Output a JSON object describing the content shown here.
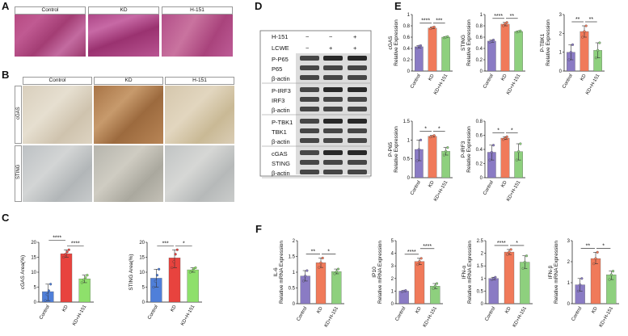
{
  "panels": {
    "A": "A",
    "B": "B",
    "C": "C",
    "D": "D",
    "E": "E",
    "F": "F"
  },
  "groups": [
    "Control",
    "KD",
    "H-151"
  ],
  "panel_b_rows": [
    "cGAS",
    "STING"
  ],
  "western": {
    "treatments": [
      {
        "name": "H-151",
        "signs": [
          "−",
          "−",
          "+"
        ]
      },
      {
        "name": "LCWE",
        "signs": [
          "−",
          "+",
          "+"
        ]
      }
    ],
    "blocks": [
      [
        "P-P65",
        "P65",
        "β-actin"
      ],
      [
        "P-IRF3",
        "IRF3",
        "β-actin"
      ],
      [
        "P-TBK1",
        "TBK1",
        "β-actin"
      ],
      [
        "cGAS",
        "STING",
        "β-actin"
      ]
    ]
  },
  "chart_data": [
    {
      "id": "C1",
      "type": "bar",
      "categories": [
        "Control",
        "KD",
        "KD+H-151"
      ],
      "values": [
        3.5,
        16.2,
        7.8
      ],
      "ylabel": "cGAS Area(%)",
      "ylim": [
        0,
        20
      ],
      "yticks": [
        0,
        5,
        10,
        15,
        20
      ],
      "colors": [
        "#4f7fd9",
        "#e8433e",
        "#8ee06b"
      ],
      "sig": [
        {
          "a": 0,
          "b": 1,
          "t": "****",
          "row": 1
        },
        {
          "a": 1,
          "b": 2,
          "t": "****",
          "row": 0
        }
      ],
      "points": [
        [
          0.5,
          2.5,
          3.8,
          6
        ],
        [
          15,
          16,
          16.8,
          17.5
        ],
        [
          6.5,
          7.5,
          8.2,
          9
        ]
      ]
    },
    {
      "id": "C2",
      "type": "bar",
      "categories": [
        "Control",
        "KD",
        "KD+H-151"
      ],
      "values": [
        8,
        14.8,
        10.8
      ],
      "ylabel": "STING Area(%)",
      "ylim": [
        0,
        20
      ],
      "yticks": [
        0,
        5,
        10,
        15,
        20
      ],
      "colors": [
        "#4f7fd9",
        "#e8433e",
        "#8ee06b"
      ],
      "sig": [
        {
          "a": 0,
          "b": 1,
          "t": "***",
          "row": 0
        },
        {
          "a": 1,
          "b": 2,
          "t": "*",
          "row": 0
        }
      ],
      "points": [
        [
          5,
          7,
          9,
          11
        ],
        [
          11.5,
          13.5,
          16,
          17.5
        ],
        [
          10,
          10.5,
          11.2,
          11.5
        ]
      ]
    },
    {
      "id": "E1",
      "type": "bar",
      "categories": [
        "Control",
        "KD",
        "KD+H-151"
      ],
      "values": [
        0.43,
        0.76,
        0.6
      ],
      "ylabel": "cGAS\nRelative Expression",
      "ylim": [
        0,
        1.0
      ],
      "yticks": [
        0,
        0.2,
        0.4,
        0.6,
        0.8,
        1.0
      ],
      "colors": [
        "#8a7bc4",
        "#f07a5a",
        "#8ed07e"
      ],
      "sig": [
        {
          "a": 0,
          "b": 1,
          "t": "****",
          "row": 0
        },
        {
          "a": 1,
          "b": 2,
          "t": "***",
          "row": 0
        }
      ],
      "points": [
        [
          0.41,
          0.44,
          0.45
        ],
        [
          0.75,
          0.77,
          0.78
        ],
        [
          0.59,
          0.6,
          0.61
        ]
      ]
    },
    {
      "id": "E2",
      "type": "bar",
      "categories": [
        "Control",
        "KD",
        "KD+H-151"
      ],
      "values": [
        0.53,
        0.83,
        0.7
      ],
      "ylabel": "STING\nRelative Expression",
      "ylim": [
        0,
        1.0
      ],
      "yticks": [
        0,
        0.2,
        0.4,
        0.6,
        0.8,
        1.0
      ],
      "colors": [
        "#8a7bc4",
        "#f07a5a",
        "#8ed07e"
      ],
      "sig": [
        {
          "a": 0,
          "b": 1,
          "t": "****",
          "row": 0
        },
        {
          "a": 1,
          "b": 2,
          "t": "**",
          "row": 0
        }
      ],
      "points": [
        [
          0.51,
          0.53,
          0.55
        ],
        [
          0.8,
          0.84,
          0.86
        ],
        [
          0.69,
          0.7,
          0.71
        ]
      ]
    },
    {
      "id": "E3",
      "type": "bar",
      "categories": [
        "Control",
        "KD",
        "KD+H-151"
      ],
      "values": [
        1.0,
        2.1,
        1.1
      ],
      "ylabel": "P-TBK1\nRelative Expression",
      "ylim": [
        0,
        3
      ],
      "yticks": [
        0,
        1,
        2,
        3
      ],
      "colors": [
        "#8a7bc4",
        "#f07a5a",
        "#8ed07e"
      ],
      "sig": [
        {
          "a": 0,
          "b": 1,
          "t": "**",
          "row": 0
        },
        {
          "a": 1,
          "b": 2,
          "t": "**",
          "row": 0
        }
      ],
      "points": [
        [
          0.6,
          1.0,
          1.4
        ],
        [
          1.8,
          2.1,
          2.4
        ],
        [
          0.7,
          1.1,
          1.5
        ]
      ]
    },
    {
      "id": "E4",
      "type": "bar",
      "categories": [
        "Control",
        "KD",
        "KD+H-151"
      ],
      "values": [
        0.75,
        1.1,
        0.7
      ],
      "ylabel": "P-P65\nRelative Expression",
      "ylim": [
        0,
        1.5
      ],
      "yticks": [
        0,
        0.5,
        1.0,
        1.5
      ],
      "colors": [
        "#8a7bc4",
        "#f07a5a",
        "#8ed07e"
      ],
      "sig": [
        {
          "a": 0,
          "b": 1,
          "t": "*",
          "row": 0
        },
        {
          "a": 1,
          "b": 2,
          "t": "*",
          "row": 0
        }
      ],
      "points": [
        [
          0.45,
          0.75,
          1.0
        ],
        [
          1.08,
          1.1,
          1.12
        ],
        [
          0.6,
          0.7,
          0.8
        ]
      ]
    },
    {
      "id": "E5",
      "type": "bar",
      "categories": [
        "Control",
        "KD",
        "KD+H-151"
      ],
      "values": [
        0.36,
        0.56,
        0.37
      ],
      "ylabel": "P-IRF3\nRelative Expression",
      "ylim": [
        0,
        0.8
      ],
      "yticks": [
        0,
        0.2,
        0.4,
        0.6,
        0.8
      ],
      "colors": [
        "#8a7bc4",
        "#f07a5a",
        "#8ed07e"
      ],
      "sig": [
        {
          "a": 0,
          "b": 1,
          "t": "*",
          "row": 0
        },
        {
          "a": 1,
          "b": 2,
          "t": "*",
          "row": 0
        }
      ],
      "points": [
        [
          0.25,
          0.36,
          0.46
        ],
        [
          0.54,
          0.56,
          0.58
        ],
        [
          0.25,
          0.37,
          0.48
        ]
      ]
    },
    {
      "id": "F1",
      "type": "bar",
      "categories": [
        "Control",
        "KD",
        "KD+H-151"
      ],
      "values": [
        0.88,
        1.3,
        1.02
      ],
      "ylabel": "IL-6\nRelative mRNA Expression",
      "ylim": [
        0,
        2.0
      ],
      "yticks": [
        0,
        0.5,
        1.0,
        1.5,
        2.0
      ],
      "colors": [
        "#8a7bc4",
        "#f07a5a",
        "#8ed07e"
      ],
      "sig": [
        {
          "a": 0,
          "b": 1,
          "t": "**",
          "row": 0
        },
        {
          "a": 1,
          "b": 2,
          "t": "*",
          "row": 0
        }
      ],
      "points": [
        [
          0.72,
          0.88,
          1.05
        ],
        [
          1.15,
          1.3,
          1.45
        ],
        [
          0.95,
          1.02,
          1.1
        ]
      ]
    },
    {
      "id": "F2",
      "type": "bar",
      "categories": [
        "Control",
        "KD",
        "KD+H-151"
      ],
      "values": [
        1.0,
        3.35,
        1.4
      ],
      "ylabel": "IP10\nRelative mRNA Expression",
      "ylim": [
        0,
        5
      ],
      "yticks": [
        0,
        1,
        2,
        3,
        4,
        5
      ],
      "colors": [
        "#8a7bc4",
        "#f07a5a",
        "#8ed07e"
      ],
      "sig": [
        {
          "a": 0,
          "b": 1,
          "t": "****",
          "row": 0
        },
        {
          "a": 1,
          "b": 2,
          "t": "****",
          "row": 1
        }
      ],
      "points": [
        [
          0.95,
          1.0,
          1.05
        ],
        [
          3.1,
          3.35,
          3.6
        ],
        [
          1.2,
          1.4,
          1.6
        ]
      ]
    },
    {
      "id": "F3",
      "type": "bar",
      "categories": [
        "Control",
        "KD",
        "KD+H-151"
      ],
      "values": [
        1.0,
        2.05,
        1.65
      ],
      "ylabel": "IFN-α\nRelative mRNA Expression",
      "ylim": [
        0,
        2.5
      ],
      "yticks": [
        0,
        0.5,
        1.0,
        1.5,
        2.0,
        2.5
      ],
      "colors": [
        "#8a7bc4",
        "#f07a5a",
        "#8ed07e"
      ],
      "sig": [
        {
          "a": 0,
          "b": 1,
          "t": "****",
          "row": 0
        },
        {
          "a": 1,
          "b": 2,
          "t": "*",
          "row": 0
        }
      ],
      "points": [
        [
          0.95,
          1.0,
          1.05
        ],
        [
          1.95,
          2.05,
          2.15
        ],
        [
          1.4,
          1.65,
          1.9
        ]
      ]
    },
    {
      "id": "F4",
      "type": "bar",
      "categories": [
        "Control",
        "KD",
        "KD+H-151"
      ],
      "values": [
        0.9,
        2.15,
        1.38
      ],
      "ylabel": "IFN-β\nRelative mRNA Expression",
      "ylim": [
        0,
        3
      ],
      "yticks": [
        0,
        1,
        2,
        3
      ],
      "colors": [
        "#8a7bc4",
        "#f07a5a",
        "#8ed07e"
      ],
      "sig": [
        {
          "a": 0,
          "b": 1,
          "t": "**",
          "row": 0
        },
        {
          "a": 1,
          "b": 2,
          "t": "*",
          "row": 0
        }
      ],
      "points": [
        [
          0.6,
          0.9,
          1.2
        ],
        [
          1.9,
          2.15,
          2.45
        ],
        [
          1.15,
          1.38,
          1.55
        ]
      ]
    }
  ]
}
